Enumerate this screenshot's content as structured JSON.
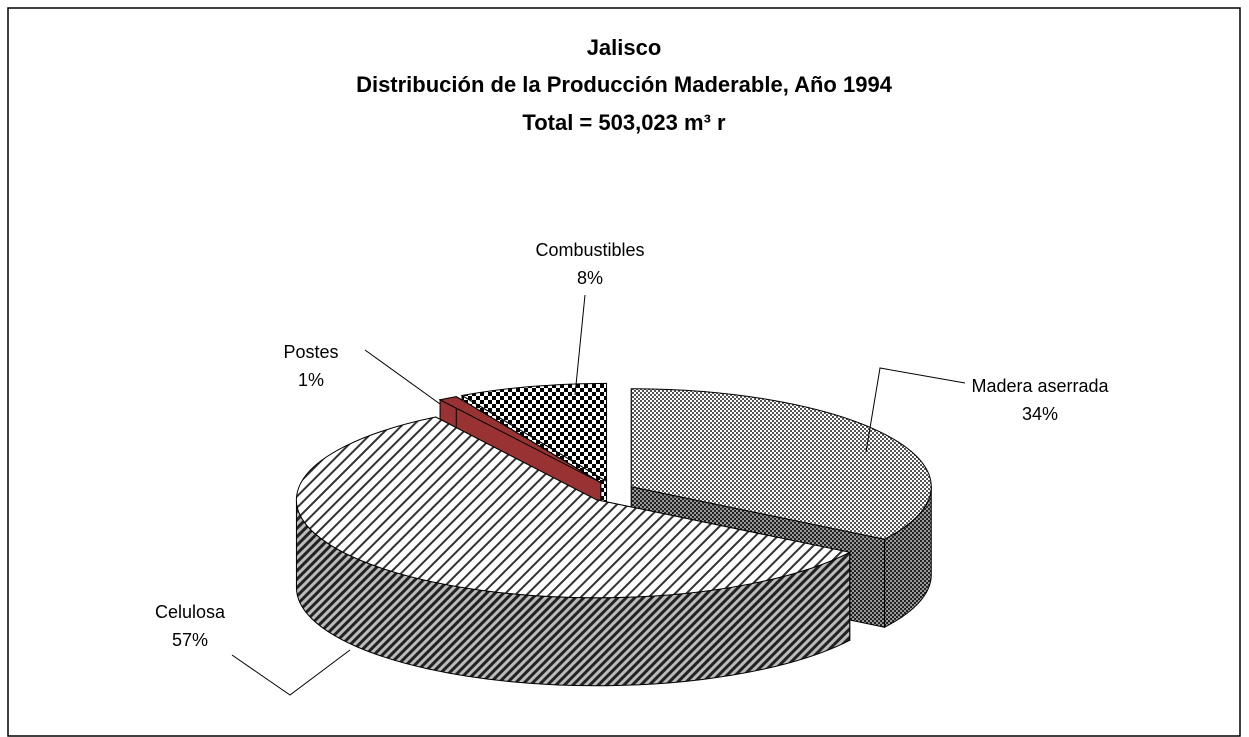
{
  "chart_data": {
    "type": "pie3d",
    "title": "Jalisco",
    "subtitle": "Distribución de la Producción Maderable, Año 1994",
    "subtitle2": "Total = 503,023 m³ r",
    "categories": [
      "Madera aserrada",
      "Celulosa",
      "Postes",
      "Combustibles"
    ],
    "values": [
      34,
      57,
      1,
      8
    ],
    "value_labels": [
      "34%",
      "57%",
      "1%",
      "8%"
    ],
    "colors": [
      "#555555",
      "#333333",
      "#993333",
      "#000000"
    ]
  }
}
